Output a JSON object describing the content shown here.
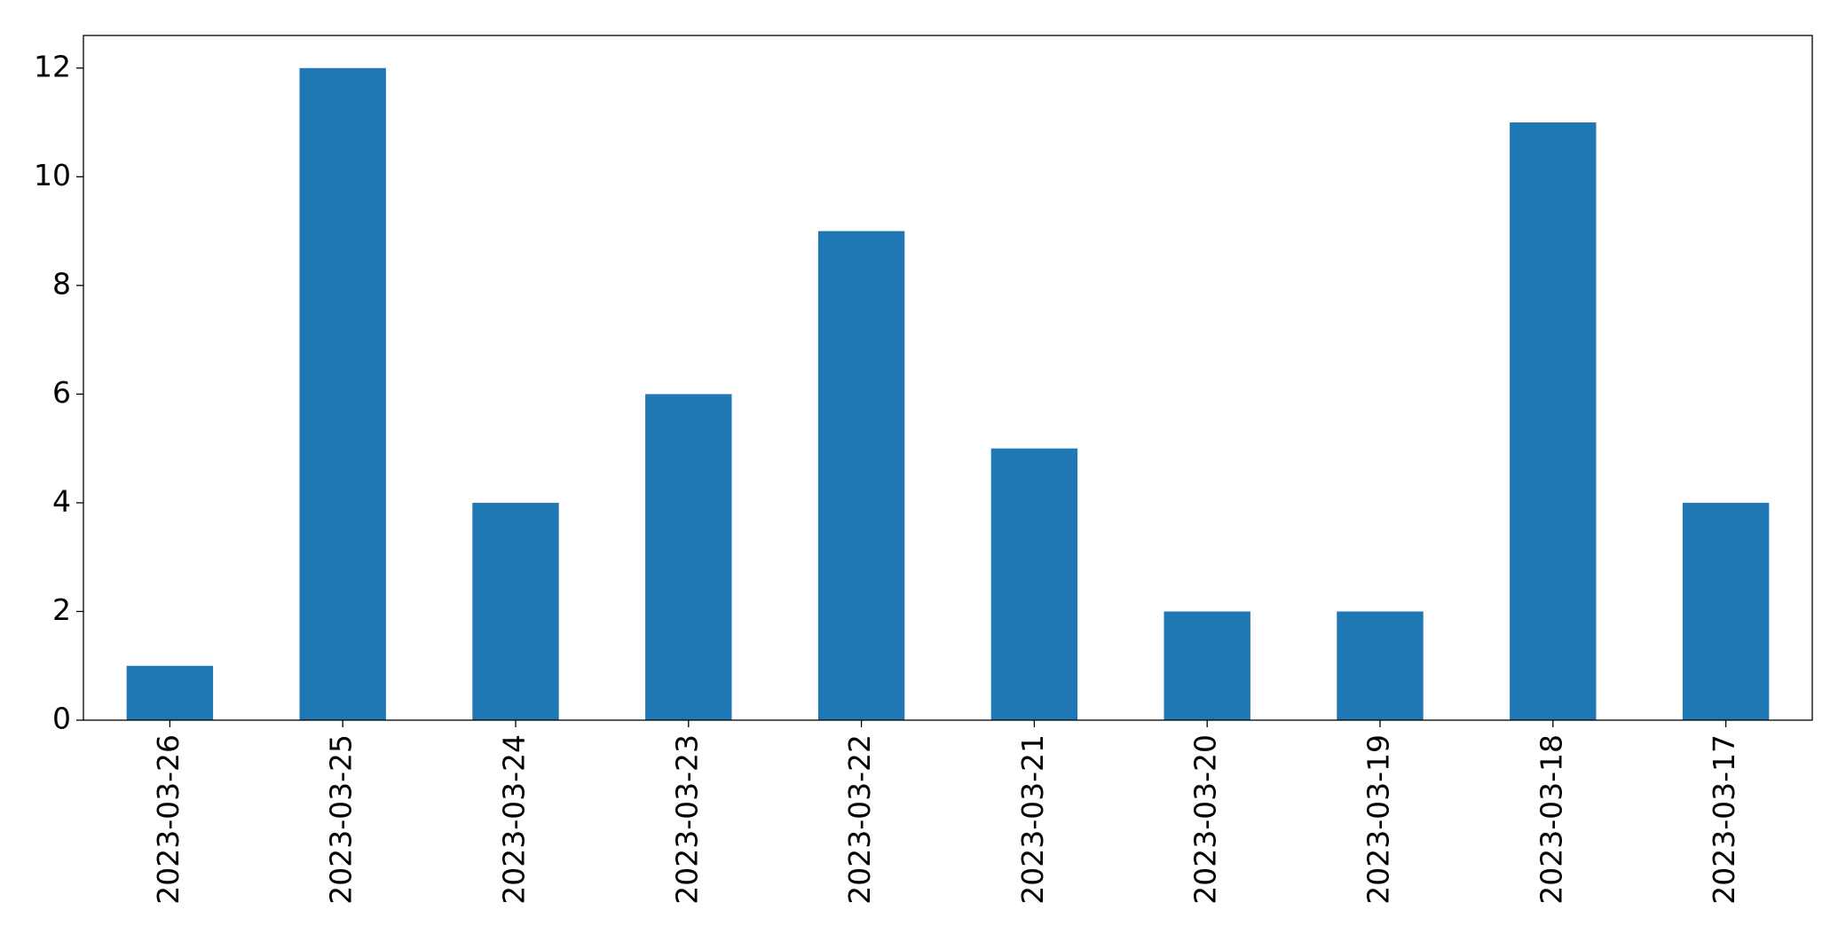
{
  "chart_data": {
    "type": "bar",
    "categories": [
      "2023-03-26",
      "2023-03-25",
      "2023-03-24",
      "2023-03-23",
      "2023-03-22",
      "2023-03-21",
      "2023-03-20",
      "2023-03-19",
      "2023-03-18",
      "2023-03-17"
    ],
    "values": [
      1,
      12,
      4,
      6,
      9,
      5,
      2,
      2,
      11,
      4
    ],
    "color": "#1f77b4",
    "ylim": [
      0,
      12.6
    ],
    "yticks": [
      0,
      2,
      4,
      6,
      8,
      10,
      12
    ],
    "grid": false
  }
}
